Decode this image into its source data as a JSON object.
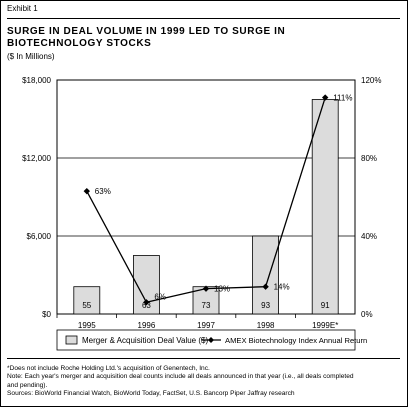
{
  "exhibit_label": "Exhibit 1",
  "title_line1": "SURGE IN DEAL VOLUME IN 1999 LED TO SURGE IN",
  "title_line2": "BIOTECHNOLOGY STOCKS",
  "subtitle": "($ In Millions)",
  "colors": {
    "bar_fill": "#dcdcdc",
    "bar_stroke": "#000000",
    "line": "#000000",
    "grid": "#000000"
  },
  "chart_data": {
    "type": "bar+line",
    "categories": [
      "1995",
      "1996",
      "1997",
      "1998",
      "1999E*"
    ],
    "series": [
      {
        "name": "Merger & Acquisition Deal Value ($)",
        "type": "bar",
        "axis": "left",
        "values": [
          2100,
          4500,
          2100,
          6000,
          16500
        ],
        "labels": [
          "55",
          "63",
          "73",
          "93",
          "91"
        ]
      },
      {
        "name": "AMEX Biotechnology Index Annual Return",
        "type": "line",
        "axis": "right",
        "values": [
          63,
          6,
          13,
          14,
          111
        ],
        "labels": [
          "63%",
          "6%",
          "13%",
          "14%",
          "111%"
        ]
      }
    ],
    "y_left": {
      "range": [
        0,
        18000
      ],
      "ticks": [
        0,
        6000,
        12000,
        18000
      ],
      "tick_labels": [
        "$0",
        "$6,000",
        "$12,000",
        "$18,000"
      ]
    },
    "y_right": {
      "range": [
        0,
        120
      ],
      "ticks": [
        0,
        40,
        80,
        120
      ],
      "tick_labels": [
        "0%",
        "40%",
        "80%",
        "120%"
      ]
    },
    "grid": true
  },
  "legend": {
    "bar_label": "Merger & Acquisition Deal Value ($)",
    "line_label": "AMEX Biotechnology Index Annual Return"
  },
  "notes": {
    "footnote": "*Does not include Roche Holding Ltd.'s acquisition of Genentech, Inc.",
    "note_line1": "Note: Each year's merger and acquisition deal counts include all deals announced in that year (i.e., all deals completed",
    "note_line2": "and pending).",
    "sources": "Sources: BioWorld Financial Watch, BioWorld Today, FactSet, U.S. Bancorp Piper Jaffray research"
  }
}
